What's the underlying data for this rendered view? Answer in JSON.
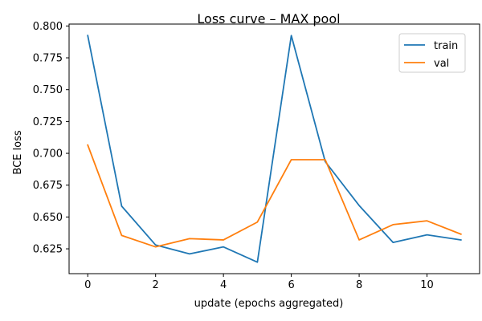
{
  "chart_data": {
    "type": "line",
    "title": "Loss curve – MAX pool",
    "xlabel": "update (epochs aggregated)",
    "ylabel": "BCE loss",
    "x": [
      0,
      1,
      2,
      3,
      4,
      5,
      6,
      7,
      8,
      9,
      10,
      11
    ],
    "xlim": [
      -0.55,
      11.55
    ],
    "ylim": [
      0.6055,
      0.8015
    ],
    "xticks": [
      0,
      2,
      4,
      6,
      8,
      10
    ],
    "yticks": [
      0.625,
      0.65,
      0.675,
      0.7,
      0.725,
      0.75,
      0.775,
      0.8
    ],
    "xtick_labels": [
      "0",
      "2",
      "4",
      "6",
      "8",
      "10"
    ],
    "ytick_labels": [
      "0.625",
      "0.650",
      "0.675",
      "0.700",
      "0.725",
      "0.750",
      "0.775",
      "0.800"
    ],
    "grid": false,
    "legend_position": "top-right",
    "series": [
      {
        "name": "train",
        "color": "#1f77b4",
        "values": [
          0.7925,
          0.6585,
          0.628,
          0.621,
          0.6265,
          0.6145,
          0.7925,
          0.6935,
          0.659,
          0.63,
          0.636,
          0.632
        ]
      },
      {
        "name": "val",
        "color": "#ff7f0e",
        "values": [
          0.7065,
          0.6355,
          0.6265,
          0.633,
          0.632,
          0.646,
          0.695,
          0.695,
          0.632,
          0.644,
          0.647,
          0.6365
        ]
      }
    ]
  }
}
